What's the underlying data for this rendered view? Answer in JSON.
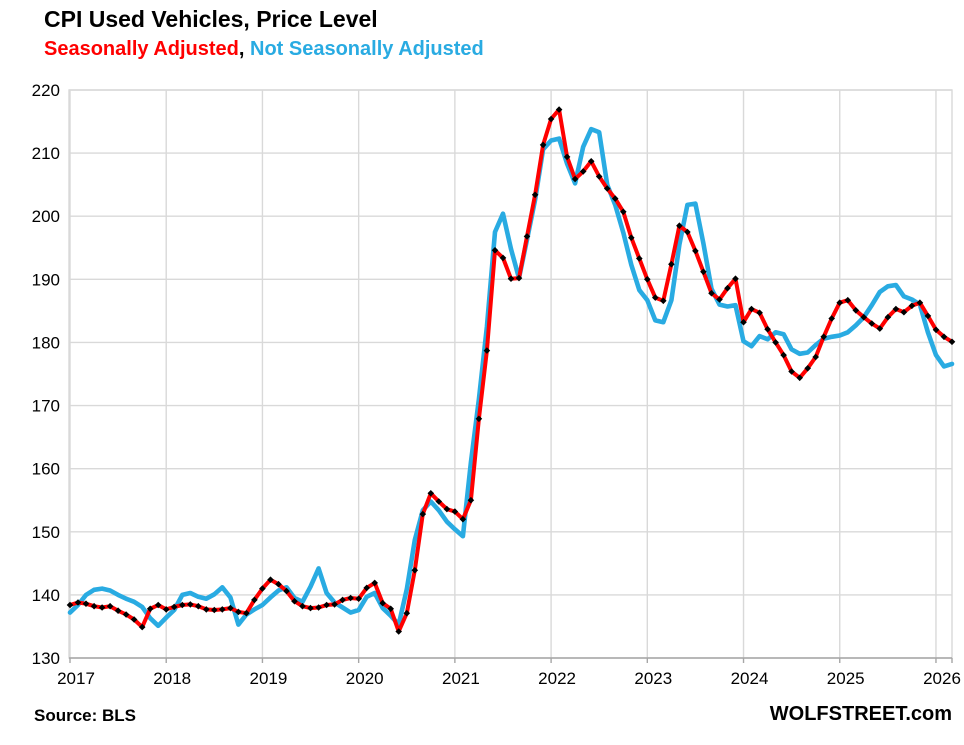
{
  "header": {
    "title": "CPI Used Vehicles, Price Level",
    "subtitle_parts": {
      "sa": "Seasonally Adjusted",
      "sep": ", ",
      "nsa": "Not Seasonally Adjusted"
    }
  },
  "footer": {
    "source": "Source: BLS",
    "brand": "WOLFSTREET.com"
  },
  "colors": {
    "sa_line": "#FF0000",
    "nsa_line": "#29ABE2",
    "marker": "#000000",
    "gridline": "#D9D9D9",
    "axis": "#A6A6A6",
    "text": "#000000"
  },
  "chart_data": {
    "type": "line",
    "title": "CPI Used Vehicles, Price Level",
    "frequency": "monthly",
    "x_start": "2017-01",
    "x_end": "2026-03",
    "x_tick_labels": [
      "2017",
      "2018",
      "2019",
      "2020",
      "2021",
      "2022",
      "2023",
      "2024",
      "2025",
      "2026"
    ],
    "y_ticks": [
      130,
      140,
      150,
      160,
      170,
      180,
      190,
      200,
      210,
      220
    ],
    "ylim": [
      130,
      220
    ],
    "grid": true,
    "legend_position": "subtitle",
    "series": [
      {
        "name": "Seasonally Adjusted",
        "color": "#FF0000",
        "marker": "black-diamond",
        "values": [
          138.4,
          138.8,
          138.6,
          138.2,
          138.0,
          138.2,
          137.5,
          136.9,
          136.1,
          134.9,
          137.8,
          138.4,
          137.7,
          138.1,
          138.4,
          138.5,
          138.2,
          137.7,
          137.6,
          137.7,
          137.9,
          137.3,
          137.1,
          139.2,
          141.0,
          142.4,
          141.7,
          140.6,
          139.0,
          138.2,
          137.9,
          138.0,
          138.4,
          138.5,
          139.2,
          139.5,
          139.4,
          141.1,
          141.9,
          138.7,
          137.8,
          134.2,
          137.1,
          143.9,
          152.8,
          156.1,
          154.8,
          153.6,
          153.2,
          152.0,
          155.0,
          167.9,
          178.7,
          194.6,
          193.4,
          190.1,
          190.2,
          196.8,
          203.4,
          211.3,
          215.4,
          216.9,
          209.4,
          205.9,
          207.1,
          208.7,
          206.3,
          204.4,
          202.8,
          200.7,
          196.6,
          193.3,
          190.0,
          187.1,
          186.6,
          192.4,
          198.5,
          197.5,
          194.5,
          191.2,
          187.8,
          186.8,
          188.6,
          190.1,
          183.2,
          185.3,
          184.7,
          182.1,
          180.0,
          178.0,
          175.4,
          174.4,
          175.9,
          177.7,
          180.9,
          183.8,
          186.3,
          186.7,
          185.1,
          184.0,
          183.0,
          182.2,
          184.0,
          185.3,
          184.8,
          185.8,
          186.3,
          184.2,
          182.0,
          180.9,
          180.1
        ]
      },
      {
        "name": "Not Seasonally Adjusted",
        "color": "#29ABE2",
        "marker": "none",
        "values": [
          137.2,
          138.4,
          140.0,
          140.8,
          141.0,
          140.7,
          140.0,
          139.4,
          138.9,
          138.1,
          136.3,
          135.1,
          136.4,
          137.6,
          140.0,
          140.3,
          139.7,
          139.4,
          140.1,
          141.2,
          139.6,
          135.3,
          136.9,
          137.7,
          138.4,
          139.6,
          140.7,
          141.2,
          139.5,
          138.9,
          141.3,
          144.2,
          140.3,
          138.8,
          138.0,
          137.2,
          137.6,
          139.7,
          140.3,
          137.9,
          136.7,
          135.3,
          140.9,
          148.7,
          153.4,
          154.8,
          153.4,
          151.6,
          150.4,
          149.3,
          161.0,
          171.0,
          182.5,
          197.5,
          200.4,
          194.8,
          190.2,
          196.3,
          202.6,
          210.6,
          212.0,
          212.3,
          208.3,
          205.2,
          211.0,
          213.8,
          213.3,
          205.0,
          201.8,
          197.4,
          192.3,
          188.3,
          186.7,
          183.5,
          183.2,
          186.7,
          195.5,
          201.8,
          202.0,
          195.7,
          188.5,
          186.0,
          185.7,
          185.9,
          180.2,
          179.4,
          181.0,
          180.5,
          181.6,
          181.3,
          178.9,
          178.2,
          178.4,
          179.6,
          180.6,
          180.9,
          181.1,
          181.6,
          182.7,
          184.0,
          185.9,
          188.0,
          188.9,
          189.1,
          187.3,
          186.8,
          186.0,
          181.6,
          178.0,
          176.2,
          176.6
        ]
      }
    ]
  }
}
